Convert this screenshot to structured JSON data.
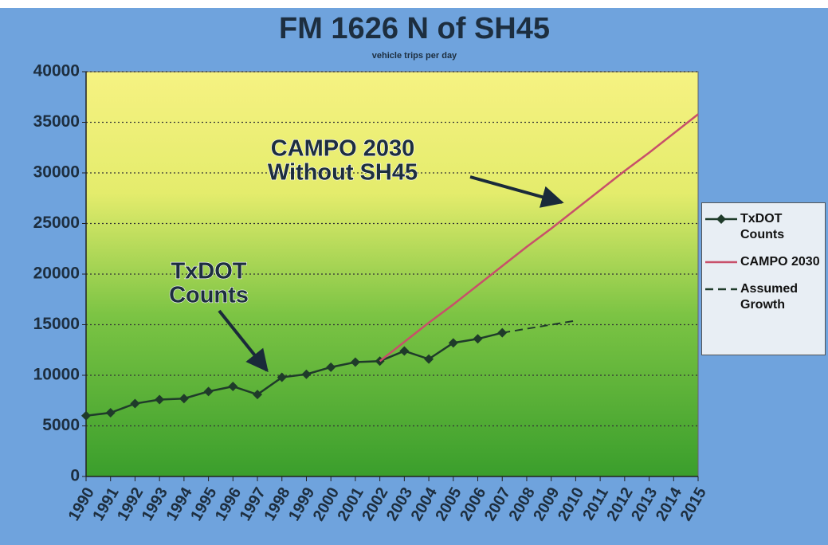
{
  "chart_data": {
    "type": "line",
    "title": "FM 1626 N of SH45",
    "subtitle": "vehicle trips per day",
    "categories": [
      "1990",
      "1991",
      "1992",
      "1993",
      "1994",
      "1995",
      "1996",
      "1997",
      "1998",
      "1999",
      "2000",
      "2001",
      "2002",
      "2003",
      "2004",
      "2005",
      "2006",
      "2007",
      "2008",
      "2009",
      "2010",
      "2011",
      "2012",
      "2013",
      "2014",
      "2015"
    ],
    "series": [
      {
        "name": "TxDOT Counts",
        "color": "#1f3b2a",
        "marker": "diamond",
        "values": [
          6000,
          6300,
          7200,
          7600,
          7700,
          8400,
          8900,
          8100,
          9800,
          10100,
          10800,
          11300,
          11400,
          12400,
          11600,
          13200,
          13600,
          14200,
          null,
          null,
          null,
          null,
          null,
          null,
          null,
          null
        ]
      },
      {
        "name": "CAMPO 2030",
        "color": "#c8506a",
        "values": [
          null,
          null,
          null,
          null,
          null,
          null,
          null,
          null,
          null,
          null,
          null,
          null,
          11400,
          13300,
          15200,
          17000,
          18900,
          20800,
          22700,
          24500,
          26400,
          28300,
          30200,
          32000,
          33900,
          35800
        ]
      },
      {
        "name": "Assumed Growth",
        "color": "#1f3b2a",
        "dashed": true,
        "values": [
          null,
          null,
          null,
          null,
          null,
          null,
          null,
          null,
          null,
          null,
          null,
          null,
          null,
          null,
          null,
          null,
          null,
          14200,
          14600,
          15000,
          15400,
          null,
          null,
          null,
          null,
          null
        ]
      }
    ],
    "annotations": [
      {
        "lines": [
          "CAMPO 2030",
          "Without SH45"
        ]
      },
      {
        "lines": [
          "TxDOT",
          "Counts"
        ]
      }
    ],
    "ylim": [
      0,
      40000
    ],
    "yticks": [
      0,
      5000,
      10000,
      15000,
      20000,
      25000,
      30000,
      35000,
      40000
    ],
    "grid": true,
    "legend": "right"
  }
}
